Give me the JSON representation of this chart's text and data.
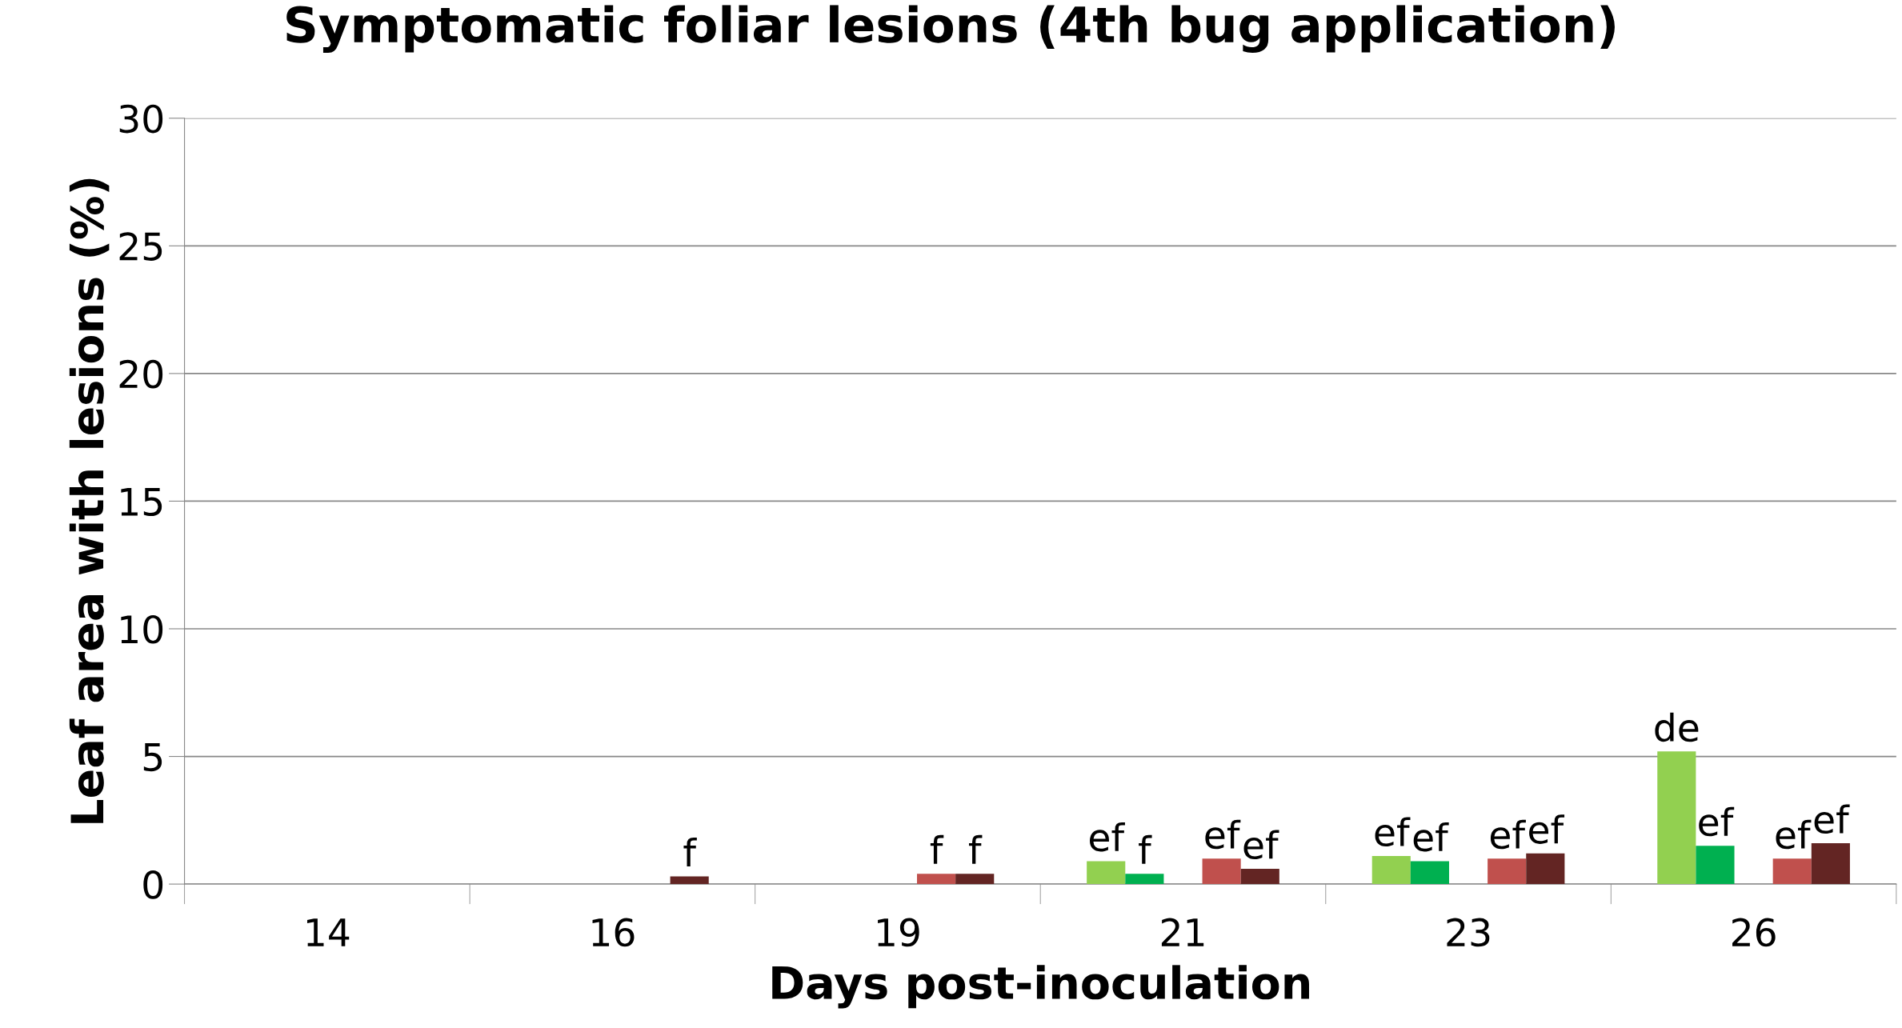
{
  "chart_data": {
    "type": "bar",
    "title": "Symptomatic foliar lesions (4th bug application)",
    "xlabel": "Days post-inoculation",
    "ylabel": "Leaf area with lesions (%)",
    "categories": [
      "14",
      "16",
      "19",
      "21",
      "23",
      "26"
    ],
    "series": [
      {
        "color": "#92d050",
        "values": [
          null,
          null,
          null,
          0.9,
          1.1,
          5.2
        ],
        "value_labels": [
          null,
          null,
          null,
          "ef",
          "ef",
          "de"
        ]
      },
      {
        "color": "#00b050",
        "values": [
          null,
          null,
          null,
          0.4,
          0.9,
          1.5
        ],
        "value_labels": [
          null,
          null,
          null,
          "f",
          "ef",
          "ef"
        ]
      },
      {
        "color": "#c0504d",
        "values": [
          null,
          null,
          0.4,
          1.0,
          1.0,
          1.0
        ],
        "value_labels": [
          null,
          null,
          "f",
          "ef",
          "ef",
          "ef"
        ]
      },
      {
        "color": "#632523",
        "values": [
          null,
          0.3,
          0.4,
          0.6,
          1.2,
          1.6
        ],
        "value_labels": [
          null,
          "f",
          "f",
          "ef",
          "ef",
          "ef"
        ]
      }
    ],
    "ylim": [
      0,
      30
    ],
    "yticks": [
      0,
      5,
      10,
      15,
      20,
      25,
      30
    ],
    "grid": "y",
    "legend": false
  }
}
